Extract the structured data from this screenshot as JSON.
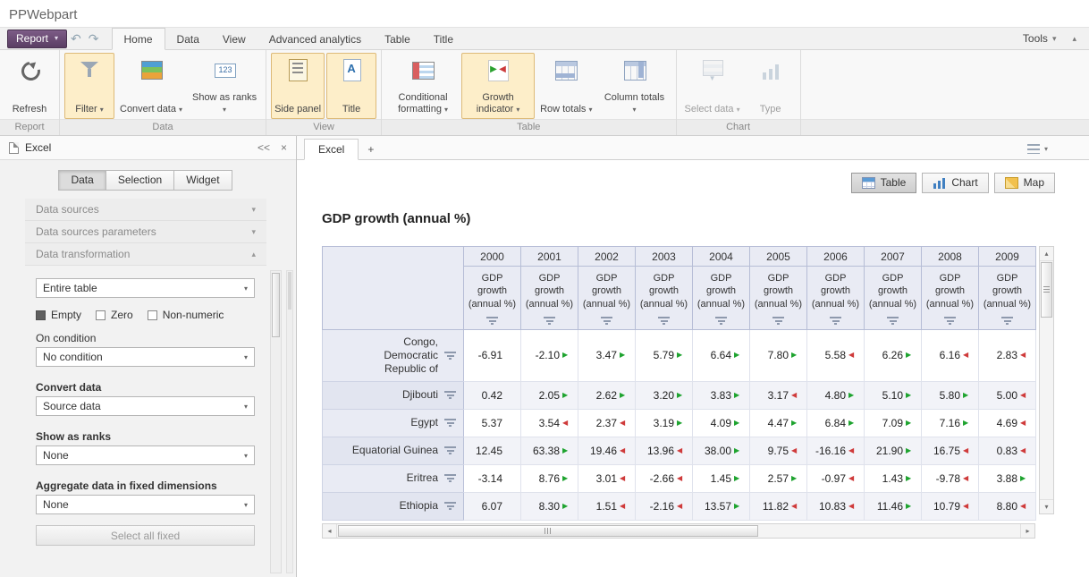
{
  "app": {
    "title": "PPWebpart"
  },
  "ribbon": {
    "report_button": "Report",
    "tools_label": "Tools",
    "tabs": [
      {
        "label": "Home",
        "active": true
      },
      {
        "label": "Data",
        "active": false
      },
      {
        "label": "View",
        "active": false
      },
      {
        "label": "Advanced analytics",
        "active": false
      },
      {
        "label": "Table",
        "active": false
      },
      {
        "label": "Title",
        "active": false
      }
    ],
    "groups": [
      {
        "label": "Report",
        "buttons": [
          {
            "label": "Refresh",
            "icon": "refresh-icon",
            "dropdown": false,
            "selected": false,
            "disabled": false
          }
        ]
      },
      {
        "label": "Data",
        "buttons": [
          {
            "label": "Filter",
            "icon": "filter-icon",
            "dropdown": true,
            "selected": true,
            "disabled": false
          },
          {
            "label": "Convert data",
            "icon": "convert-data-icon",
            "dropdown": true,
            "selected": false,
            "disabled": false
          },
          {
            "label": "Show as ranks",
            "icon": "show-as-ranks-icon",
            "dropdown": true,
            "selected": false,
            "disabled": false
          }
        ]
      },
      {
        "label": "View",
        "buttons": [
          {
            "label": "Side panel",
            "icon": "side-panel-icon",
            "dropdown": false,
            "selected": true,
            "disabled": false
          },
          {
            "label": "Title",
            "icon": "title-icon",
            "dropdown": false,
            "selected": true,
            "disabled": false
          }
        ]
      },
      {
        "label": "Table",
        "buttons": [
          {
            "label": "Conditional formatting",
            "icon": "conditional-formatting-icon",
            "dropdown": true,
            "selected": false,
            "disabled": false
          },
          {
            "label": "Growth indicator",
            "icon": "growth-indicator-icon",
            "dropdown": true,
            "selected": true,
            "disabled": false
          },
          {
            "label": "Row totals",
            "icon": "row-totals-icon",
            "dropdown": true,
            "selected": false,
            "disabled": false
          },
          {
            "label": "Column totals",
            "icon": "column-totals-icon",
            "dropdown": true,
            "selected": false,
            "disabled": false
          }
        ]
      },
      {
        "label": "Chart",
        "buttons": [
          {
            "label": "Select data",
            "icon": "select-data-icon",
            "dropdown": true,
            "selected": false,
            "disabled": true
          },
          {
            "label": "Type",
            "icon": "type-icon",
            "dropdown": false,
            "selected": false,
            "disabled": true
          }
        ]
      }
    ]
  },
  "sidebar": {
    "header": {
      "title": "Excel",
      "collapse_label": "<<",
      "close_label": "×"
    },
    "tabs": [
      {
        "label": "Data",
        "active": true
      },
      {
        "label": "Selection",
        "active": false
      },
      {
        "label": "Widget",
        "active": false
      }
    ],
    "sections": [
      {
        "label": "Data sources",
        "expanded": false
      },
      {
        "label": "Data sources parameters",
        "expanded": false
      },
      {
        "label": "Data transformation",
        "expanded": true
      }
    ],
    "transformation": {
      "scope_value": "Entire table",
      "checkboxes": [
        {
          "label": "Empty",
          "checked": true
        },
        {
          "label": "Zero",
          "checked": false
        },
        {
          "label": "Non-numeric",
          "checked": false
        }
      ],
      "on_condition_label": "On condition",
      "condition_value": "No condition",
      "convert_data_label": "Convert data",
      "convert_data_value": "Source data",
      "show_as_ranks_label": "Show as ranks",
      "show_as_ranks_value": "None",
      "aggregate_label": "Aggregate data in fixed dimensions",
      "aggregate_value": "None",
      "select_all_fixed_label": "Select all fixed"
    }
  },
  "main": {
    "doc_tab": "Excel",
    "add_tab": "+",
    "view_buttons": [
      {
        "label": "Table",
        "active": true,
        "icon": "table-view-icon"
      },
      {
        "label": "Chart",
        "active": false,
        "icon": "chart-view-icon"
      },
      {
        "label": "Map",
        "active": false,
        "icon": "map-view-icon"
      }
    ],
    "table_title": "GDP growth (annual %)"
  },
  "table": {
    "years": [
      "2000",
      "2001",
      "2002",
      "2003",
      "2004",
      "2005",
      "2006",
      "2007",
      "2008",
      "2009"
    ],
    "measure_label": "GDP growth (annual %)",
    "rows": [
      {
        "name": "Congo, Democratic Republic of",
        "values": [
          "-6.91",
          "-2.10",
          "3.47",
          "5.79",
          "6.64",
          "7.80",
          "5.58",
          "6.26",
          "6.16",
          "2.83"
        ],
        "indicators": [
          null,
          "up",
          "up",
          "up",
          "up",
          "up",
          "down",
          "up",
          "down",
          "down"
        ]
      },
      {
        "name": "Djibouti",
        "values": [
          "0.42",
          "2.05",
          "2.62",
          "3.20",
          "3.83",
          "3.17",
          "4.80",
          "5.10",
          "5.80",
          "5.00"
        ],
        "indicators": [
          null,
          "up",
          "up",
          "up",
          "up",
          "down",
          "up",
          "up",
          "up",
          "down"
        ]
      },
      {
        "name": "Egypt",
        "values": [
          "5.37",
          "3.54",
          "2.37",
          "3.19",
          "4.09",
          "4.47",
          "6.84",
          "7.09",
          "7.16",
          "4.69"
        ],
        "indicators": [
          null,
          "down",
          "down",
          "up",
          "up",
          "up",
          "up",
          "up",
          "up",
          "down"
        ]
      },
      {
        "name": "Equatorial Guinea",
        "values": [
          "12.45",
          "63.38",
          "19.46",
          "13.96",
          "38.00",
          "9.75",
          "-16.16",
          "21.90",
          "16.75",
          "0.83"
        ],
        "indicators": [
          null,
          "up",
          "down",
          "down",
          "up",
          "down",
          "down",
          "up",
          "down",
          "down"
        ]
      },
      {
        "name": "Eritrea",
        "values": [
          "-3.14",
          "8.76",
          "3.01",
          "-2.66",
          "1.45",
          "2.57",
          "-0.97",
          "1.43",
          "-9.78",
          "3.88"
        ],
        "indicators": [
          null,
          "up",
          "down",
          "down",
          "up",
          "up",
          "down",
          "up",
          "down",
          "up"
        ]
      },
      {
        "name": "Ethiopia",
        "values": [
          "6.07",
          "8.30",
          "1.51",
          "-2.16",
          "13.57",
          "11.82",
          "10.83",
          "11.46",
          "10.79",
          "8.80"
        ],
        "indicators": [
          null,
          "up",
          "down",
          "down",
          "up",
          "down",
          "down",
          "up",
          "down",
          "down"
        ]
      }
    ]
  }
}
